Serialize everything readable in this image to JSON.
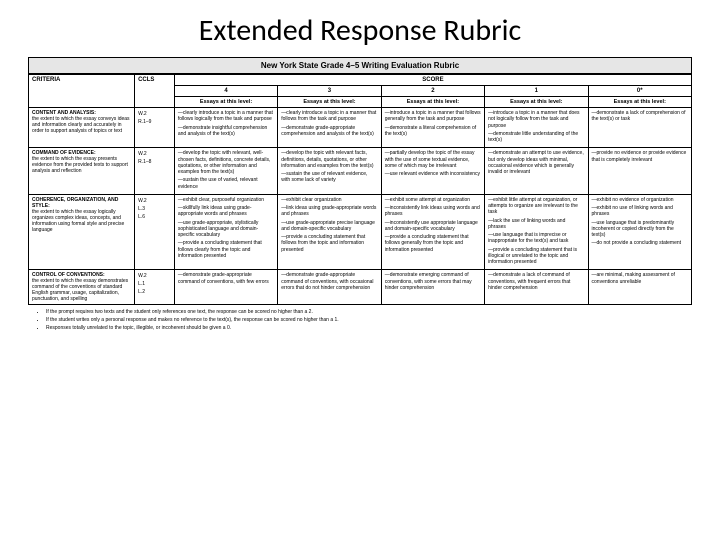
{
  "page_title": "Extended Response Rubric",
  "rubric_title": "New York State Grade 4–5 Writing Evaluation Rubric",
  "headers": {
    "criteria": "CRITERIA",
    "ccls": "CCLS",
    "score": "SCORE",
    "essays": "Essays at this level:",
    "scores": [
      "4",
      "3",
      "2",
      "1",
      "0*"
    ]
  },
  "rows": [
    {
      "criteria_title": "CONTENT AND ANALYSIS:",
      "criteria_body": "the extent to which the essay conveys ideas and information clearly and accurately in order to support analysis of topics or text",
      "ccls": "W.2\nR.1–9",
      "cells": [
        [
          "—clearly introduce a topic in a manner that follows logically from the task and purpose",
          "—demonstrate insightful comprehension and analysis of the text(s)"
        ],
        [
          "—clearly introduce a topic in a manner that follows from the task and purpose",
          "—demonstrate grade-appropriate comprehension and analysis of the text(s)"
        ],
        [
          "—introduce a topic in a manner that follows generally from the task and purpose",
          "—demonstrate a literal comprehension of the text(s)"
        ],
        [
          "—introduce a topic in a manner that does not logically follow from the task and purpose",
          "—demonstrate little understanding of the text(s)"
        ],
        [
          "—demonstrate a lack of comprehension of the text(s) or task"
        ]
      ]
    },
    {
      "criteria_title": "COMMAND OF EVIDENCE:",
      "criteria_body": "the extent to which the essay presents evidence from the provided texts to support analysis and reflection",
      "ccls": "W.2\nR.1–8",
      "cells": [
        [
          "—develop the topic with relevant, well-chosen facts, definitions, concrete details, quotations, or other information and examples from the text(s)",
          "—sustain the use of varied, relevant evidence"
        ],
        [
          "—develop the topic with relevant facts, definitions, details, quotations, or other information and examples from the text(s)",
          "—sustain the use of relevant evidence, with some lack of variety"
        ],
        [
          "—partially develop the topic of the essay with the use of some textual evidence, some of which may be irrelevant",
          "—use relevant evidence with inconsistency"
        ],
        [
          "—demonstrate an attempt to use evidence, but only develop ideas with minimal, occasional evidence which is generally invalid or irrelevant"
        ],
        [
          "—provide no evidence or provide evidence that is completely irrelevant"
        ]
      ]
    },
    {
      "criteria_title": "COHERENCE, ORGANIZATION, AND STYLE:",
      "criteria_body": "the extent to which the essay logically organizes complex ideas, concepts, and information using formal style and precise language",
      "ccls": "W.2\nL.3\nL.6",
      "cells": [
        [
          "—exhibit clear, purposeful organization",
          "—skillfully link ideas using grade-appropriate words and phrases",
          "—use grade-appropriate, stylistically sophisticated language and domain-specific vocabulary",
          "—provide a concluding statement that follows clearly from the topic and information presented"
        ],
        [
          "—exhibit clear organization",
          "—link ideas using grade-appropriate words and phrases",
          "—use grade-appropriate precise language and domain-specific vocabulary",
          "—provide a concluding statement that follows from the topic and information presented"
        ],
        [
          "—exhibit some attempt at organization",
          "—inconsistently link ideas using words and phrases",
          "—inconsistently use appropriate language and domain-specific vocabulary",
          "—provide a concluding statement that follows generally from the topic and information presented"
        ],
        [
          "—exhibit little attempt at organization, or attempts to organize are irrelevant to the task",
          "—lack the use of linking words and phrases",
          "—use language that is imprecise or inappropriate for the text(s) and task",
          "—provide a concluding statement that is illogical or unrelated to the topic and information presented"
        ],
        [
          "—exhibit no evidence of organization",
          "—exhibit no use of linking words and phrases",
          "—use language that is predominantly incoherent or copied directly from the text(s)",
          "—do not provide a concluding statement"
        ]
      ]
    },
    {
      "criteria_title": "CONTROL OF CONVENTIONS:",
      "criteria_body": "the extent to which the essay demonstrates command of the conventions of standard English grammar, usage, capitalization, punctuation, and spelling",
      "ccls": "W.2\nL.1\nL.2",
      "cells": [
        [
          "—demonstrate grade-appropriate command of conventions, with few errors"
        ],
        [
          "—demonstrate grade-appropriate command of conventions, with occasional errors that do not hinder comprehension"
        ],
        [
          "—demonstrate emerging command of conventions, with some errors that may hinder comprehension"
        ],
        [
          "—demonstrate a lack of command of conventions, with frequent errors that hinder comprehension"
        ],
        [
          "—are minimal, making assessment of conventions unreliable"
        ]
      ]
    }
  ],
  "notes": [
    "If the prompt requires two texts and the student only references one text, the response can be scored no higher than a 2.",
    "If the student writes only a personal response and makes no reference to the text(s), the response can be scored no higher than a 1.",
    "Responses totally unrelated to the topic, illegible, or incoherent should be given a 0."
  ],
  "style": {
    "background": "#ffffff",
    "header_bg": "#e6e6e6",
    "border_color": "#000000",
    "title_fontsize": 30
  }
}
